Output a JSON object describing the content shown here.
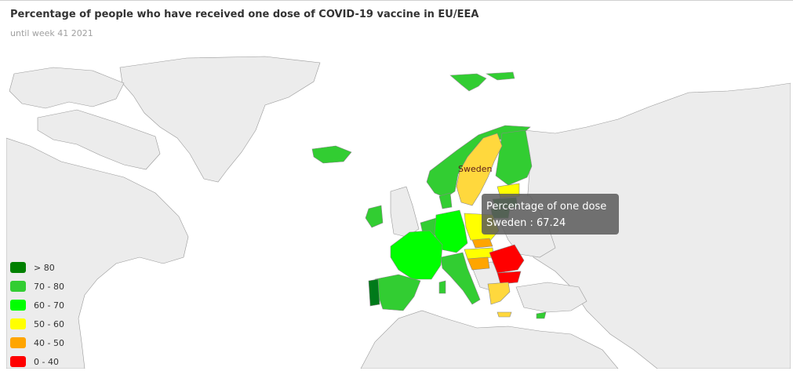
{
  "header": {
    "title": "Percentage of people who have received one dose of COVID-19 vaccine in EU/EEA",
    "subtitle": "until week 41 2021"
  },
  "map": {
    "highlighted_country_label": "Sweden",
    "tooltip": {
      "title": "Percentage of one dose",
      "value": "Sweden : 67.24"
    },
    "colors": {
      "land": "#ececec",
      "border": "#999999",
      "sea": "#ffffff"
    }
  },
  "legend": {
    "items": [
      {
        "label": "> 80",
        "color": "#008000"
      },
      {
        "label": "70 - 80",
        "color": "#32cd32"
      },
      {
        "label": "60 - 70",
        "color": "#00ff00"
      },
      {
        "label": "50 - 60",
        "color": "#ffff00"
      },
      {
        "label": "40 - 50",
        "color": "#ffa500"
      },
      {
        "label": "0 - 40",
        "color": "#ff0000"
      }
    ]
  },
  "chart_data": {
    "type": "choropleth",
    "title": "Percentage of people who have received one dose of COVID-19 vaccine in EU/EEA",
    "subtitle": "until week 41 2021",
    "tooltip_country": "Sweden",
    "tooltip_value": 67.24,
    "countries": [
      {
        "name": "Portugal",
        "band": "> 80"
      },
      {
        "name": "Spain",
        "band": "70 - 80"
      },
      {
        "name": "Ireland",
        "band": "70 - 80"
      },
      {
        "name": "Iceland",
        "band": "70 - 80"
      },
      {
        "name": "Norway",
        "band": "70 - 80"
      },
      {
        "name": "Finland",
        "band": "70 - 80"
      },
      {
        "name": "Denmark",
        "band": "70 - 80"
      },
      {
        "name": "Italy",
        "band": "70 - 80"
      },
      {
        "name": "France",
        "band": "60 - 70"
      },
      {
        "name": "Germany",
        "band": "60 - 70"
      },
      {
        "name": "Austria",
        "band": "60 - 70"
      },
      {
        "name": "Sweden",
        "band": "60 - 70"
      },
      {
        "name": "Poland",
        "band": "50 - 60"
      },
      {
        "name": "Greece",
        "band": "50 - 60"
      },
      {
        "name": "Latvia",
        "band": "50 - 60"
      },
      {
        "name": "Slovenia",
        "band": "40 - 50"
      },
      {
        "name": "Croatia",
        "band": "40 - 50"
      },
      {
        "name": "Romania",
        "band": "0 - 40"
      },
      {
        "name": "Bulgaria",
        "band": "0 - 40"
      }
    ]
  }
}
